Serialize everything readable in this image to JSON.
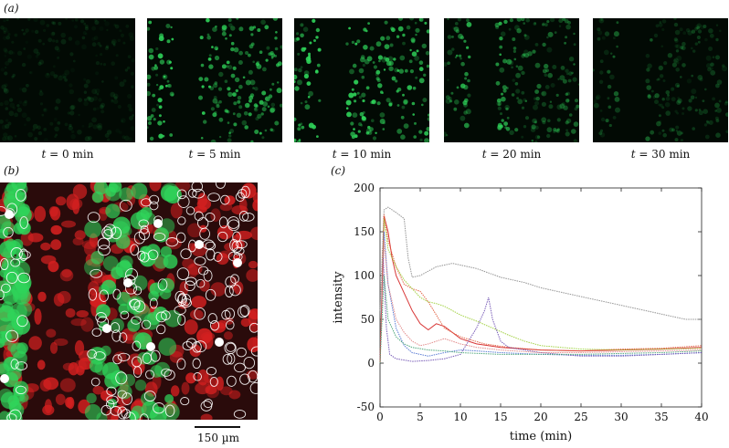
{
  "panels": {
    "a": {
      "label": "(a)"
    },
    "b": {
      "label": "(b)",
      "scale_bar": "150 µm"
    },
    "c": {
      "label": "(c)"
    }
  },
  "frames": [
    {
      "t_label": "t",
      "eq": " = ",
      "value": "0 min",
      "intensity": 0.15,
      "dark_band": false
    },
    {
      "t_label": "t",
      "eq": " = ",
      "value": "5 min",
      "intensity": 0.9,
      "dark_band": true
    },
    {
      "t_label": "t",
      "eq": " = ",
      "value": "10 min",
      "intensity": 1.0,
      "dark_band": true
    },
    {
      "t_label": "t",
      "eq": " = ",
      "value": "20 min",
      "intensity": 0.55,
      "dark_band": true
    },
    {
      "t_label": "t",
      "eq": " = ",
      "value": "30 min",
      "intensity": 0.3,
      "dark_band": true
    }
  ],
  "colors": {
    "green_fluor": "#2fd45a",
    "red_fluor": "#d42020",
    "outline": "#ffffff"
  },
  "chart_data": {
    "type": "line",
    "xlabel": "time (min)",
    "ylabel": "intensity",
    "xlim": [
      0,
      40
    ],
    "ylim": [
      -50,
      200
    ],
    "xticks": [
      0,
      5,
      10,
      15,
      20,
      25,
      30,
      35,
      40
    ],
    "yticks": [
      -50,
      0,
      50,
      100,
      150,
      200
    ],
    "grid": false,
    "series": [
      {
        "color": "#888888",
        "points": [
          [
            0,
            60
          ],
          [
            0.5,
            175
          ],
          [
            1,
            178
          ],
          [
            2,
            172
          ],
          [
            3,
            165
          ],
          [
            3.5,
            120
          ],
          [
            4,
            98
          ],
          [
            5,
            100
          ],
          [
            7,
            110
          ],
          [
            9,
            114
          ],
          [
            10,
            112
          ],
          [
            12,
            108
          ],
          [
            15,
            98
          ],
          [
            18,
            92
          ],
          [
            20,
            86
          ],
          [
            23,
            80
          ],
          [
            26,
            74
          ],
          [
            28,
            70
          ],
          [
            30,
            66
          ],
          [
            33,
            60
          ],
          [
            35,
            56
          ],
          [
            38,
            50
          ],
          [
            40,
            50
          ]
        ]
      },
      {
        "color": "#d42020",
        "points": [
          [
            0,
            0
          ],
          [
            0.5,
            168
          ],
          [
            1,
            150
          ],
          [
            1.5,
            120
          ],
          [
            2,
            100
          ],
          [
            3,
            80
          ],
          [
            4,
            60
          ],
          [
            5,
            45
          ],
          [
            6,
            38
          ],
          [
            7,
            45
          ],
          [
            8,
            42
          ],
          [
            9,
            35
          ],
          [
            10,
            28
          ],
          [
            12,
            22
          ],
          [
            15,
            18
          ],
          [
            20,
            15
          ],
          [
            25,
            14
          ],
          [
            30,
            15
          ],
          [
            35,
            16
          ],
          [
            40,
            18
          ]
        ]
      },
      {
        "color": "#e05a3a",
        "points": [
          [
            0,
            0
          ],
          [
            0.5,
            170
          ],
          [
            1,
            140
          ],
          [
            2,
            110
          ],
          [
            3,
            90
          ],
          [
            4,
            85
          ],
          [
            5,
            82
          ],
          [
            6,
            70
          ],
          [
            7,
            55
          ],
          [
            8,
            40
          ],
          [
            10,
            30
          ],
          [
            13,
            22
          ],
          [
            16,
            18
          ],
          [
            20,
            15
          ],
          [
            25,
            14
          ],
          [
            30,
            16
          ],
          [
            35,
            17
          ],
          [
            40,
            20
          ]
        ]
      },
      {
        "color": "#9acd32",
        "points": [
          [
            0,
            0
          ],
          [
            0.5,
            165
          ],
          [
            1,
            130
          ],
          [
            2,
            110
          ],
          [
            3,
            95
          ],
          [
            4,
            85
          ],
          [
            5,
            75
          ],
          [
            6,
            70
          ],
          [
            7,
            68
          ],
          [
            8,
            65
          ],
          [
            9,
            60
          ],
          [
            10,
            55
          ],
          [
            12,
            48
          ],
          [
            14,
            40
          ],
          [
            16,
            32
          ],
          [
            18,
            25
          ],
          [
            20,
            20
          ],
          [
            25,
            16
          ],
          [
            30,
            15
          ],
          [
            35,
            16
          ],
          [
            40,
            17
          ]
        ]
      },
      {
        "color": "#4a6fd0",
        "points": [
          [
            0,
            0
          ],
          [
            0.5,
            150
          ],
          [
            1,
            90
          ],
          [
            2,
            40
          ],
          [
            3,
            20
          ],
          [
            4,
            12
          ],
          [
            5,
            10
          ],
          [
            6,
            8
          ],
          [
            7,
            10
          ],
          [
            8,
            12
          ],
          [
            10,
            15
          ],
          [
            12,
            14
          ],
          [
            15,
            12
          ],
          [
            20,
            10
          ],
          [
            25,
            9
          ],
          [
            30,
            9
          ],
          [
            35,
            10
          ],
          [
            40,
            12
          ]
        ]
      },
      {
        "color": "#6a4bb0",
        "points": [
          [
            0,
            0
          ],
          [
            0.4,
            120
          ],
          [
            0.8,
            40
          ],
          [
            1.2,
            10
          ],
          [
            2,
            5
          ],
          [
            4,
            2
          ],
          [
            6,
            3
          ],
          [
            8,
            5
          ],
          [
            10,
            10
          ],
          [
            12,
            40
          ],
          [
            13,
            60
          ],
          [
            13.5,
            75
          ],
          [
            14,
            50
          ],
          [
            15,
            25
          ],
          [
            16,
            18
          ],
          [
            20,
            12
          ],
          [
            25,
            8
          ],
          [
            30,
            8
          ],
          [
            35,
            10
          ],
          [
            40,
            12
          ]
        ]
      },
      {
        "color": "#e08080",
        "points": [
          [
            0,
            0
          ],
          [
            0.5,
            140
          ],
          [
            1,
            90
          ],
          [
            2,
            50
          ],
          [
            3,
            35
          ],
          [
            4,
            25
          ],
          [
            5,
            20
          ],
          [
            6,
            22
          ],
          [
            8,
            28
          ],
          [
            10,
            22
          ],
          [
            12,
            18
          ],
          [
            15,
            15
          ],
          [
            20,
            12
          ],
          [
            25,
            12
          ],
          [
            30,
            13
          ],
          [
            35,
            14
          ],
          [
            40,
            15
          ]
        ]
      },
      {
        "color": "#40a070",
        "points": [
          [
            0,
            0
          ],
          [
            0.5,
            100
          ],
          [
            1,
            50
          ],
          [
            2,
            30
          ],
          [
            3,
            22
          ],
          [
            4,
            18
          ],
          [
            6,
            15
          ],
          [
            8,
            14
          ],
          [
            10,
            12
          ],
          [
            15,
            10
          ],
          [
            20,
            10
          ],
          [
            25,
            10
          ],
          [
            30,
            11
          ],
          [
            35,
            12
          ],
          [
            40,
            14
          ]
        ]
      }
    ]
  }
}
